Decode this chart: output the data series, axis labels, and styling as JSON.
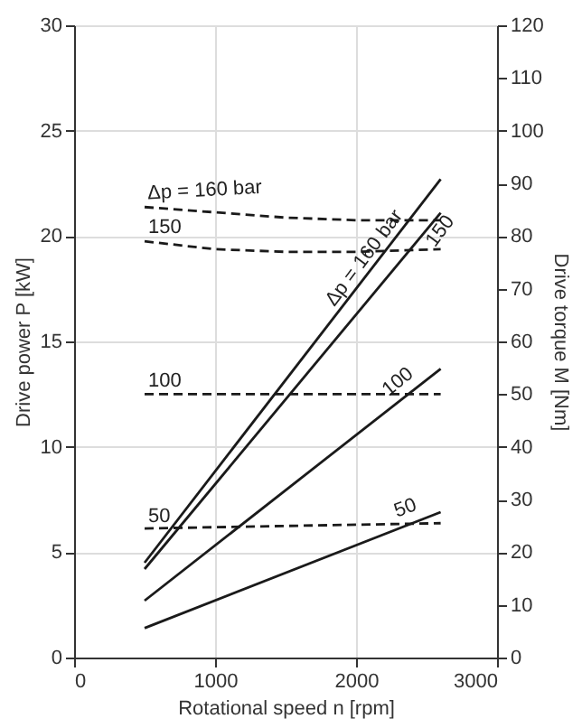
{
  "chart_data": {
    "type": "line",
    "xlabel": "Rotational speed n [rpm]",
    "ylabel": "Drive power P [kW]",
    "y2label": "Drive torque M [Nm]",
    "xlim": [
      0,
      3000
    ],
    "xticks": [
      0,
      1000,
      2000,
      3000
    ],
    "ylim": [
      0,
      30
    ],
    "yticks": [
      0,
      5,
      10,
      15,
      20,
      25,
      30
    ],
    "y2lim": [
      0,
      120
    ],
    "y2ticks": [
      0,
      10,
      20,
      30,
      40,
      50,
      60,
      70,
      80,
      90,
      100,
      110,
      120
    ],
    "grid": true,
    "marker": "none",
    "series": [
      {
        "color": "#1a1a1a",
        "line_style": "solid",
        "x": [
          500,
          2600
        ],
        "values": [
          4.5,
          22.7
        ]
      },
      {
        "color": "#1a1a1a",
        "line_style": "solid",
        "x": [
          500,
          2600
        ],
        "values": [
          4.2,
          21.1
        ]
      },
      {
        "color": "#1a1a1a",
        "line_style": "solid",
        "x": [
          500,
          2600
        ],
        "values": [
          2.7,
          13.7
        ]
      },
      {
        "color": "#1a1a1a",
        "line_style": "solid",
        "x": [
          500,
          2600
        ],
        "values": [
          1.4,
          6.9
        ]
      },
      {
        "color": "#1a1a1a",
        "line_style": "dashed",
        "axis": "y2",
        "x": [
          500,
          1000,
          1500,
          2000,
          2600
        ],
        "values": [
          85.5,
          84.5,
          83.5,
          83,
          83
        ]
      },
      {
        "color": "#1a1a1a",
        "line_style": "dashed",
        "axis": "y2",
        "x": [
          500,
          1000,
          1500,
          2000,
          2600
        ],
        "values": [
          79,
          77.5,
          77,
          77,
          77.5
        ]
      },
      {
        "color": "#1a1a1a",
        "line_style": "dashed",
        "axis": "y2",
        "x": [
          500,
          2600
        ],
        "values": [
          50,
          50
        ]
      },
      {
        "color": "#1a1a1a",
        "line_style": "dashed",
        "axis": "y2",
        "x": [
          500,
          2600
        ],
        "values": [
          24.5,
          25.5
        ]
      }
    ],
    "annotations": [
      {
        "text": "Δp = 160 bar",
        "x": 2200,
        "y": 19.2
      },
      {
        "text": "150",
        "x": 2450,
        "y": 19.9
      },
      {
        "text": "100",
        "x": 2450,
        "y": 12.9
      },
      {
        "text": "50",
        "x": 2450,
        "y": 6.5
      },
      {
        "text": "Δp = 160 bar",
        "x": 500,
        "y": 21.4
      },
      {
        "text": "150",
        "x": 500,
        "y": 19.8
      },
      {
        "text": "100",
        "x": 500,
        "y": 12.5
      },
      {
        "text": "50",
        "x": 500,
        "y": 6.1
      }
    ]
  }
}
